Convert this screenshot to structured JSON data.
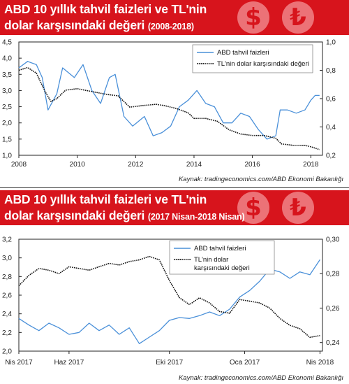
{
  "charts": [
    {
      "title_line1": "ABD 10 yıllık tahvil faizleri ve TL'nin",
      "title_line2": "dolar karşısındaki değeri",
      "title_period": "(2008-2018)",
      "source": "Kaynak: tradingeconomics.com/ABD Ekonomi Bakanlığı",
      "coin_symbols": [
        "$",
        "₺"
      ],
      "colors": {
        "banner": "#d7141c",
        "bond": "#4a90d9",
        "tl": "#111111"
      }
    },
    {
      "title_line1": "ABD 10 yıllık tahvil faizleri ve TL'nin",
      "title_line2": "dolar karşısındaki değeri",
      "title_period": "(2017 Nisan-2018 Nisan)",
      "source": "Kaynak: tradingeconomics.com/ABD Ekonomi Bakanlığı",
      "coin_symbols": [
        "$",
        "₺"
      ],
      "colors": {
        "banner": "#d7141c",
        "bond": "#4a90d9",
        "tl": "#111111"
      }
    }
  ],
  "chart_data": [
    {
      "type": "line",
      "grid": false,
      "legend_position": "top-right",
      "x_tick_labels": [
        "2008",
        "2010",
        "2012",
        "2014",
        "2016",
        "2018"
      ],
      "x_ticks": [
        2008,
        2010,
        2012,
        2014,
        2016,
        2018
      ],
      "xlim": [
        2008,
        2018.4
      ],
      "left_ylim": [
        1.0,
        4.5
      ],
      "left_y_ticks": [
        1.0,
        1.5,
        2.0,
        2.5,
        3.0,
        3.5,
        4.0,
        4.5
      ],
      "left_y_tick_labels": [
        "1,0",
        "1,5",
        "2,0",
        "2,5",
        "3,0",
        "3,5",
        "4,0",
        "4,5"
      ],
      "right_ylim": [
        0.2,
        1.0
      ],
      "right_y_ticks": [
        0.2,
        0.4,
        0.6,
        0.8,
        1.0
      ],
      "right_y_tick_labels": [
        "0,2",
        "0,4",
        "0,6",
        "0,8",
        "1,0"
      ],
      "series": [
        {
          "name": "ABD tahvil faizleri",
          "axis": "left",
          "style": "solid",
          "x": [
            2008.0,
            2008.3,
            2008.6,
            2008.8,
            2009.0,
            2009.3,
            2009.5,
            2009.9,
            2010.2,
            2010.5,
            2010.8,
            2011.1,
            2011.3,
            2011.6,
            2011.9,
            2012.3,
            2012.6,
            2012.9,
            2013.2,
            2013.5,
            2013.8,
            2014.1,
            2014.4,
            2014.7,
            2015.0,
            2015.3,
            2015.6,
            2015.9,
            2016.2,
            2016.5,
            2016.8,
            2016.95,
            2017.2,
            2017.5,
            2017.8,
            2018.0,
            2018.15,
            2018.3
          ],
          "y": [
            3.7,
            3.9,
            3.8,
            3.4,
            2.4,
            2.9,
            3.7,
            3.4,
            3.8,
            3.0,
            2.6,
            3.4,
            3.5,
            2.2,
            1.9,
            2.2,
            1.6,
            1.7,
            1.9,
            2.5,
            2.7,
            3.0,
            2.6,
            2.5,
            2.0,
            2.0,
            2.3,
            2.2,
            1.8,
            1.5,
            1.6,
            2.4,
            2.4,
            2.3,
            2.4,
            2.7,
            2.85,
            2.85
          ]
        },
        {
          "name": "TL'nin dolar karşısındaki değeri",
          "axis": "right",
          "style": "dashed",
          "x": [
            2008.0,
            2008.3,
            2008.6,
            2008.9,
            2009.1,
            2009.3,
            2009.6,
            2010.0,
            2010.5,
            2011.0,
            2011.4,
            2011.8,
            2012.2,
            2012.7,
            2013.0,
            2013.4,
            2013.8,
            2014.0,
            2014.4,
            2014.8,
            2015.2,
            2015.6,
            2016.0,
            2016.4,
            2016.8,
            2017.0,
            2017.4,
            2017.8,
            2018.0,
            2018.3
          ],
          "y": [
            0.8,
            0.82,
            0.78,
            0.65,
            0.58,
            0.6,
            0.66,
            0.67,
            0.65,
            0.63,
            0.62,
            0.54,
            0.55,
            0.56,
            0.55,
            0.53,
            0.5,
            0.46,
            0.46,
            0.44,
            0.38,
            0.35,
            0.34,
            0.34,
            0.32,
            0.28,
            0.27,
            0.27,
            0.26,
            0.24
          ]
        }
      ]
    },
    {
      "type": "line",
      "grid": false,
      "legend_position": "top-right",
      "x_tick_labels": [
        "Nis 2017",
        "Haz 2017",
        "Eki 2017",
        "Oca 2017",
        "Nis 2018"
      ],
      "x_ticks": [
        0,
        2,
        6,
        9,
        12
      ],
      "xlim": [
        0,
        12.1
      ],
      "left_ylim": [
        2.0,
        3.2
      ],
      "left_y_ticks": [
        2.0,
        2.2,
        2.4,
        2.6,
        2.8,
        3.0,
        3.2
      ],
      "left_y_tick_labels": [
        "2,0",
        "2,2",
        "2,4",
        "2,6",
        "2,8",
        "3,0",
        "3,2"
      ],
      "right_ylim": [
        0.235,
        0.3
      ],
      "right_y_ticks": [
        0.24,
        0.26,
        0.28,
        0.3
      ],
      "right_y_tick_labels": [
        "0,24",
        "0,26",
        "0,28",
        "0,30"
      ],
      "series": [
        {
          "name": "ABD tahvil faizleri",
          "axis": "left",
          "style": "solid",
          "x": [
            0,
            0.4,
            0.8,
            1.2,
            1.6,
            2.0,
            2.4,
            2.8,
            3.2,
            3.6,
            4.0,
            4.4,
            4.8,
            5.2,
            5.6,
            6.0,
            6.4,
            6.8,
            7.2,
            7.6,
            8.0,
            8.4,
            8.8,
            9.2,
            9.6,
            10.0,
            10.4,
            10.8,
            11.2,
            11.6,
            12.0
          ],
          "y": [
            2.35,
            2.28,
            2.22,
            2.3,
            2.25,
            2.18,
            2.2,
            2.3,
            2.22,
            2.28,
            2.18,
            2.25,
            2.08,
            2.15,
            2.22,
            2.33,
            2.36,
            2.35,
            2.38,
            2.42,
            2.38,
            2.45,
            2.58,
            2.65,
            2.75,
            2.88,
            2.85,
            2.78,
            2.85,
            2.82,
            2.98
          ]
        },
        {
          "name": "TL'nin dolar karşısındaki değeri",
          "axis": "right",
          "style": "dashed",
          "x": [
            0,
            0.4,
            0.8,
            1.2,
            1.6,
            2.0,
            2.4,
            2.8,
            3.2,
            3.6,
            4.0,
            4.4,
            4.8,
            5.2,
            5.6,
            6.0,
            6.4,
            6.8,
            7.2,
            7.6,
            8.0,
            8.4,
            8.8,
            9.2,
            9.6,
            10.0,
            10.4,
            10.8,
            11.2,
            11.6,
            12.0
          ],
          "y": [
            0.273,
            0.279,
            0.283,
            0.282,
            0.28,
            0.284,
            0.283,
            0.282,
            0.284,
            0.286,
            0.285,
            0.287,
            0.288,
            0.29,
            0.288,
            0.276,
            0.266,
            0.262,
            0.266,
            0.263,
            0.258,
            0.257,
            0.265,
            0.264,
            0.263,
            0.26,
            0.254,
            0.25,
            0.248,
            0.243,
            0.244
          ]
        }
      ]
    }
  ]
}
